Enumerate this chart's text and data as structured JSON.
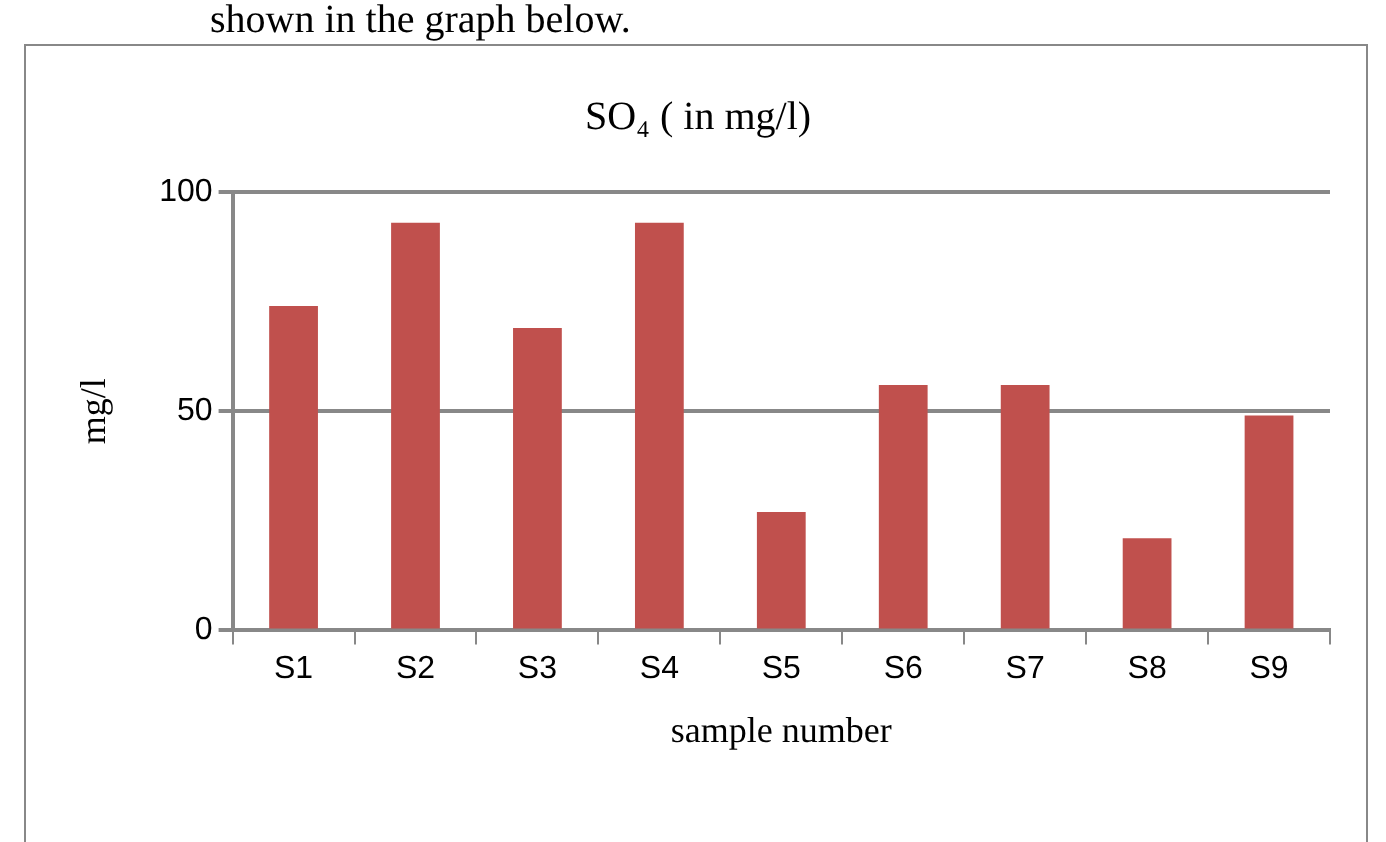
{
  "chart_data": {
    "type": "bar",
    "title": "SO₄ ( in mg/l)",
    "xlabel": "sample number",
    "ylabel": "mg/l",
    "categories": [
      "S1",
      "S2",
      "S3",
      "S4",
      "S5",
      "S6",
      "S7",
      "S8",
      "S9"
    ],
    "values": [
      74,
      93,
      69,
      93,
      27,
      56,
      56,
      21,
      49
    ],
    "color": "#c0504d",
    "ylim": [
      0,
      100
    ],
    "yticks": [
      0,
      50,
      100
    ],
    "grid": "y",
    "legend": false,
    "annotations": [
      "shown in the graph below."
    ]
  }
}
